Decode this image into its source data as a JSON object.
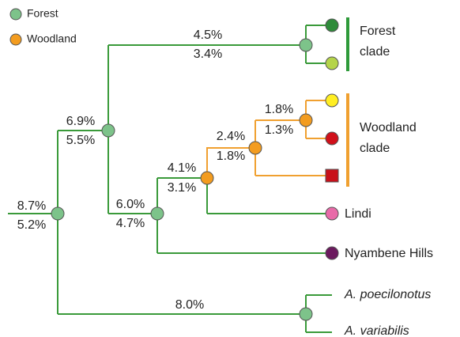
{
  "legend": [
    {
      "label": "Forest"
    },
    {
      "label": "Woodland"
    }
  ],
  "branches": [
    {
      "upper": "8.7%",
      "lower": "5.2%"
    },
    {
      "upper": "6.9%",
      "lower": "5.5%"
    },
    {
      "upper": "4.5%",
      "lower": "3.4%"
    },
    {
      "upper": "6.0%",
      "lower": "4.7%"
    },
    {
      "upper": "4.1%",
      "lower": "3.1%"
    },
    {
      "upper": "2.4%",
      "lower": "1.8%"
    },
    {
      "upper": "1.8%",
      "lower": "1.3%"
    },
    {
      "upper": "8.0%"
    }
  ],
  "clades": [
    {
      "line1": "Forest",
      "line2": "clade"
    },
    {
      "line1": "Woodland",
      "line2": "clade"
    }
  ],
  "leaves": [
    "Lindi",
    "Nyambene Hills",
    "A. poecilonotus",
    "A. variabilis"
  ]
}
